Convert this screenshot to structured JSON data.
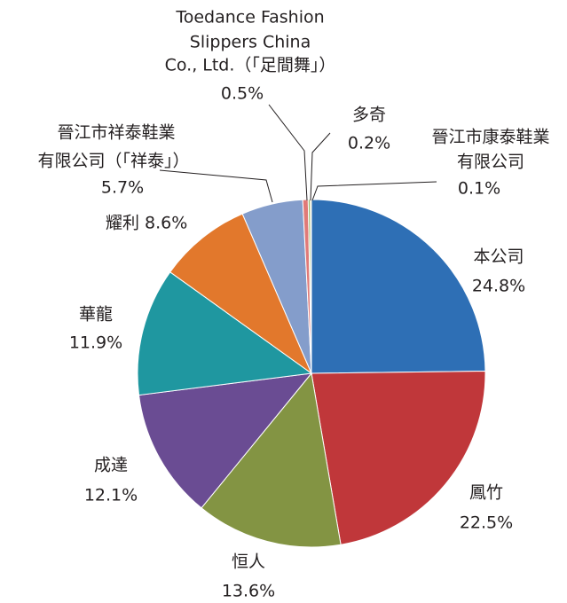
{
  "chart_data": {
    "type": "pie",
    "categories": [
      [
        "本公司"
      ],
      [
        "鳳竹"
      ],
      [
        "恒人"
      ],
      [
        "成達"
      ],
      [
        "華龍"
      ],
      [
        "耀利"
      ],
      [
        "晉江市祥泰鞋業",
        "有限公司（「祥泰」）"
      ],
      [
        "Toedance Fashion",
        "Slippers China",
        "Co., Ltd.（「足間舞」）"
      ],
      [
        "多奇"
      ],
      [
        "晉江市康泰鞋業",
        "有限公司"
      ]
    ],
    "values": [
      24.8,
      22.5,
      13.6,
      12.1,
      11.9,
      8.6,
      5.7,
      0.5,
      0.2,
      0.1
    ],
    "value_labels": [
      "24.8%",
      "22.5%",
      "13.6%",
      "12.1%",
      "11.9%",
      "8.6%",
      "5.7%",
      "0.5%",
      "0.2%",
      "0.1%"
    ],
    "colors": [
      "#2e6fb5",
      "#c0373a",
      "#839443",
      "#6a4c93",
      "#1f97a0",
      "#e2782c",
      "#849dcb",
      "#e07a78",
      "#9bb86a",
      "#f0c040"
    ]
  }
}
